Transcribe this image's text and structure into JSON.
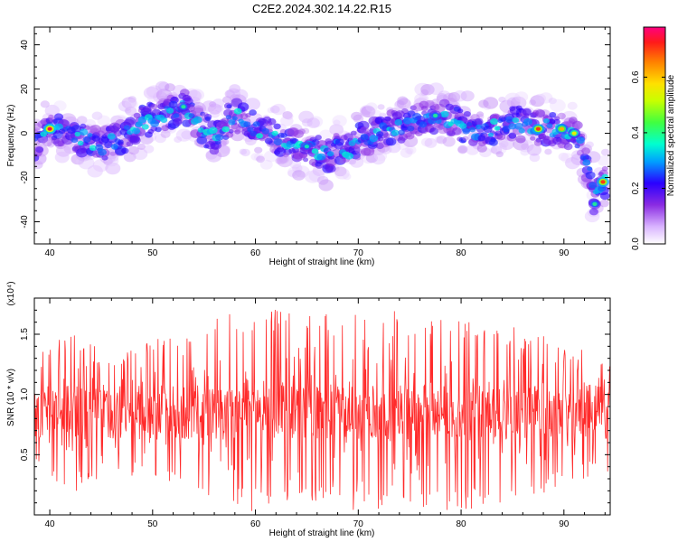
{
  "chart_data": [
    {
      "type": "heatmap",
      "title": "C2E2.2024.302.14.22.R15",
      "xlabel": "Height of straight line (km)",
      "ylabel": "Frequency (Hz)",
      "xlim": [
        38.5,
        94.5
      ],
      "ylim": [
        -50,
        48
      ],
      "x_ticks": [
        40,
        50,
        60,
        70,
        80,
        90
      ],
      "y_ticks": [
        40,
        20,
        0,
        -20,
        -40
      ],
      "colorbar": {
        "label": "Normalized spectral amplitude",
        "range": [
          0,
          0.78
        ],
        "ticks": [
          0.0,
          0.2,
          0.4,
          0.6
        ],
        "tick_labels": [
          "0.0",
          "0.2",
          "0.4",
          "0.6"
        ]
      },
      "ridge": {
        "x": [
          38.5,
          40,
          42,
          44,
          45,
          46,
          47,
          48,
          49,
          50,
          51,
          52,
          53,
          54,
          55,
          56,
          57,
          58,
          59,
          60,
          61,
          62,
          63,
          64,
          65,
          66,
          67,
          68,
          69,
          70,
          71,
          72,
          73,
          74,
          75,
          76,
          77,
          78,
          79,
          80,
          81,
          82,
          83,
          84,
          85,
          86,
          87,
          88,
          89,
          90,
          91,
          92,
          92.5,
          93,
          93.5,
          94
        ],
        "y": [
          -5,
          2,
          0,
          -3,
          -6,
          -4,
          -2,
          2,
          5,
          7,
          8,
          10,
          12,
          8,
          2,
          -2,
          4,
          8,
          5,
          2,
          0,
          -2,
          -4,
          -5,
          -6,
          -8,
          -10,
          -6,
          -8,
          -4,
          -2,
          0,
          2,
          3,
          5,
          6,
          7,
          8,
          6,
          4,
          2,
          0,
          2,
          4,
          5,
          4,
          2,
          3,
          2,
          1,
          0,
          -10,
          -18,
          -30,
          -22,
          -22
        ]
      },
      "hotspots": [
        {
          "x": 40,
          "y": 2,
          "amp": 0.75
        },
        {
          "x": 87.5,
          "y": 2,
          "amp": 0.7
        },
        {
          "x": 89.8,
          "y": 2,
          "amp": 0.62
        },
        {
          "x": 91,
          "y": 0,
          "amp": 0.55
        },
        {
          "x": 93.8,
          "y": -22,
          "amp": 0.7
        },
        {
          "x": 93,
          "y": -32,
          "amp": 0.4
        },
        {
          "x": 53,
          "y": 12,
          "amp": 0.4
        },
        {
          "x": 65,
          "y": -6,
          "amp": 0.38
        },
        {
          "x": 77.5,
          "y": 8,
          "amp": 0.4
        }
      ]
    },
    {
      "type": "line",
      "title": "",
      "xlabel": "Height of straight line (km)",
      "ylabel": "SNR (10 * v/v)",
      "y_scale_label": "(x10⁴)",
      "xlim": [
        38.5,
        94.5
      ],
      "ylim": [
        0,
        1.8
      ],
      "x_ticks": [
        40,
        50,
        60,
        70,
        80,
        90
      ],
      "y_ticks": [
        0.5,
        1.0,
        1.5
      ],
      "y_tick_labels": [
        "0.5",
        "1.0",
        "1.5"
      ],
      "line_color": "#ff2a2a",
      "series": [
        {
          "mean": 0.85,
          "envelope": {
            "x": [
              38.5,
              42,
              46,
              50,
              54,
              58,
              62,
              66,
              70,
              74,
              78,
              82,
              86,
              90,
              94.5
            ],
            "upper": [
              1.3,
              1.55,
              1.3,
              1.45,
              1.6,
              1.7,
              1.72,
              1.65,
              1.78,
              1.68,
              1.62,
              1.6,
              1.55,
              1.45,
              1.3
            ],
            "lower": [
              0.45,
              0.15,
              0.35,
              0.3,
              0.15,
              0.0,
              0.08,
              0.05,
              0.02,
              0.05,
              0.02,
              0.03,
              0.1,
              0.25,
              0.35
            ]
          }
        }
      ]
    }
  ]
}
